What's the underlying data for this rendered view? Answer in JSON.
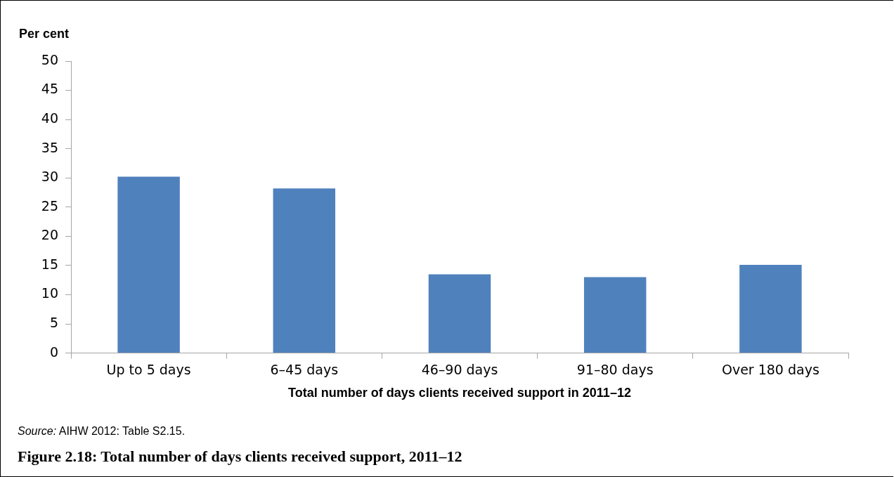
{
  "chart_data": {
    "type": "bar",
    "title": "Figure 2.18: Total number of days clients received support, 2011–12",
    "ylabel": "Per cent",
    "xlabel": "Total number of days clients received support in 2011–12",
    "categories": [
      "Up to 5 days",
      "6–45 days",
      "46–90 days",
      "91–80 days",
      "Over 180 days"
    ],
    "values": [
      30.2,
      28.2,
      13.5,
      13.0,
      15.1
    ],
    "color": "#4f81bd",
    "ylim": [
      0,
      50
    ],
    "yticks": [
      0,
      5,
      10,
      15,
      20,
      25,
      30,
      35,
      40,
      45,
      50
    ],
    "grid": false,
    "legend": false,
    "annotations": [
      "Source: AIHW 2012: Table S2.15."
    ]
  }
}
